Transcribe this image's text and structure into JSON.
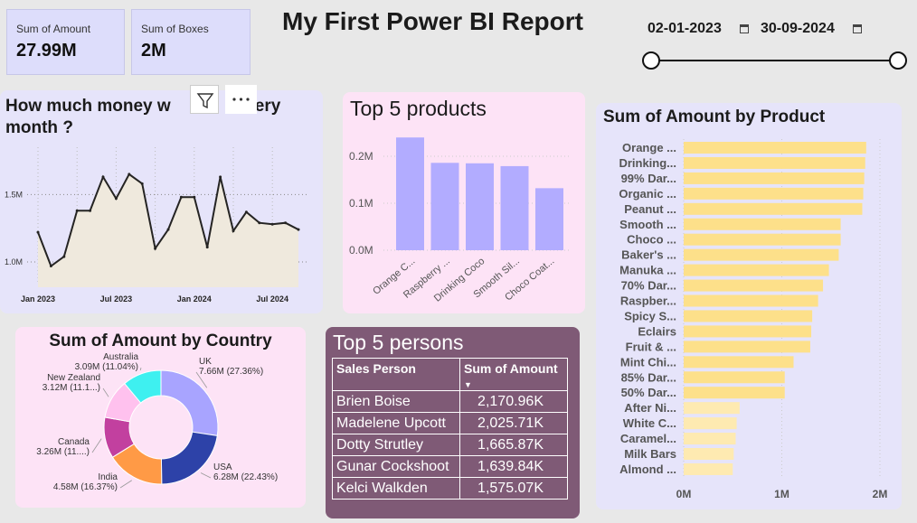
{
  "kpis": [
    {
      "label": "Sum of Amount",
      "value": "27.99M"
    },
    {
      "label": "Sum of Boxes",
      "value": "2M"
    }
  ],
  "report_title": "My First Power BI Report",
  "date_slicer": {
    "start": "02-01-2023",
    "end": "30-09-2024"
  },
  "colors": {
    "page_bg": "#e8e8e8",
    "card_bg": "#ddddfb",
    "pink_panel": "#fde3f6",
    "lavender_panel": "#e6e4fa",
    "bar_purple": "#b2acff",
    "bar_yellow": "#fde08a",
    "bar_yellow_light": "#feeab1",
    "persons_bg": "#7f5a76",
    "line_fill": "#efe9dd"
  },
  "header_icons": {
    "filter": "filter-icon",
    "more": "more-options-icon"
  },
  "monthly_chart": {
    "title": "How much money w... every month ?",
    "title_line1": "How much money w",
    "title_line1_end": "every",
    "title_line2": "month ?"
  },
  "top_products_title": "Top 5 products",
  "country_title": "Sum of Amount by Country",
  "product_title": "Sum of Amount by Product",
  "persons": {
    "title": "Top 5 persons",
    "columns": [
      "Sales Person",
      "Sum of Amount"
    ],
    "sort_indicator": "▼",
    "rows": [
      [
        "Brien Boise",
        "2,170.96K"
      ],
      [
        "Madelene Upcott",
        "2,025.71K"
      ],
      [
        "Dotty Strutley",
        "1,665.87K"
      ],
      [
        "Gunar Cockshoot",
        "1,639.84K"
      ],
      [
        "Kelci Walkden",
        "1,575.07K"
      ]
    ]
  },
  "chart_data": [
    {
      "type": "area",
      "title": "How much money w... every month ?",
      "x_tick_labels": [
        "Jan 2023",
        "Jul 2023",
        "Jan 2024",
        "Jul 2024"
      ],
      "y_tick_labels": [
        "1.0M",
        "1.5M"
      ],
      "ylim": [
        0.9,
        1.85
      ],
      "x": [
        "2023-01",
        "2023-02",
        "2023-03",
        "2023-04",
        "2023-05",
        "2023-06",
        "2023-07",
        "2023-08",
        "2023-09",
        "2023-10",
        "2023-11",
        "2023-12",
        "2024-01",
        "2024-02",
        "2024-03",
        "2024-04",
        "2024-05",
        "2024-06",
        "2024-07",
        "2024-08",
        "2024-09"
      ],
      "values": [
        1.22,
        0.97,
        1.04,
        1.38,
        1.38,
        1.63,
        1.47,
        1.65,
        1.58,
        1.1,
        1.24,
        1.48,
        1.48,
        1.11,
        1.63,
        1.23,
        1.37,
        1.29,
        1.28,
        1.29,
        1.24
      ],
      "grid": true
    },
    {
      "type": "bar",
      "title": "Top 5 products",
      "categories": [
        "Orange C...",
        "Raspberry ...",
        "Drinking Coco",
        "Smooth Sil...",
        "Choco Coat..."
      ],
      "values": [
        0.24,
        0.186,
        0.185,
        0.179,
        0.132
      ],
      "y_tick_labels": [
        "0.0M",
        "0.1M",
        "0.2M"
      ],
      "ylim": [
        0,
        0.25
      ]
    },
    {
      "type": "pie",
      "title": "Sum of Amount by Country",
      "donut": true,
      "slices": [
        {
          "name": "UK",
          "label": "7.66M (27.36%)",
          "value": 7.66,
          "color": "#a8a4ff"
        },
        {
          "name": "USA",
          "label": "6.28M (22.43%)",
          "value": 6.28,
          "color": "#2d42a8"
        },
        {
          "name": "India",
          "label": "4.58M (16.37%)",
          "value": 4.58,
          "color": "#ff9a46"
        },
        {
          "name": "Canada",
          "label": "3.26M (11....)",
          "value": 3.26,
          "color": "#c2409f"
        },
        {
          "name": "New Zealand",
          "label": "3.12M (11.1...)",
          "value": 3.12,
          "color": "#ffc1ee"
        },
        {
          "name": "Australia",
          "label": "3.09M (11.04%)",
          "value": 3.09,
          "color": "#3ef0f0"
        }
      ]
    },
    {
      "type": "bar",
      "orientation": "horizontal",
      "title": "Sum of Amount by Product",
      "categories": [
        "Orange ...",
        "Drinking...",
        "99% Dar...",
        "Organic ...",
        "Peanut ...",
        "Smooth ...",
        "Choco ...",
        "Baker's ...",
        "Manuka ...",
        "70% Dar...",
        "Raspber...",
        "Spicy S...",
        "Eclairs",
        "Fruit & ...",
        "Mint Chi...",
        "85% Dar...",
        "50% Dar...",
        "After Ni...",
        "White C...",
        "Caramel...",
        "Milk Bars",
        "Almond ..."
      ],
      "values": [
        1.86,
        1.85,
        1.84,
        1.83,
        1.82,
        1.6,
        1.6,
        1.58,
        1.48,
        1.42,
        1.37,
        1.31,
        1.3,
        1.29,
        1.12,
        1.03,
        1.03,
        0.57,
        0.54,
        0.53,
        0.51,
        0.5
      ],
      "x_tick_labels": [
        "0M",
        "1M",
        "2M"
      ],
      "xlim": [
        0,
        2
      ]
    }
  ]
}
